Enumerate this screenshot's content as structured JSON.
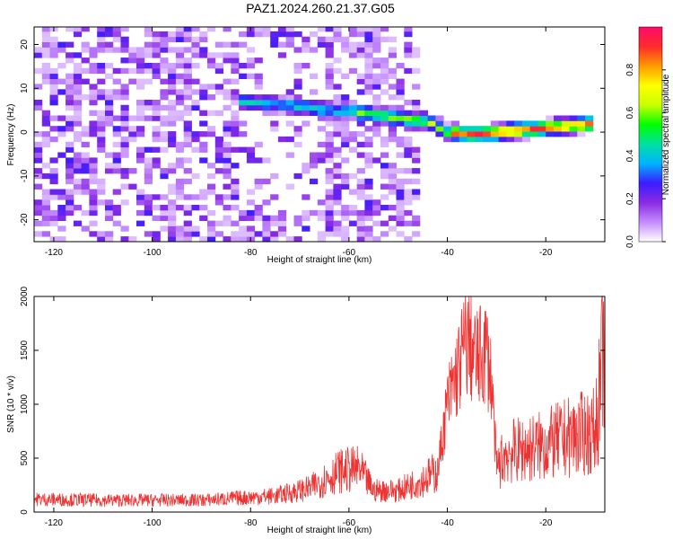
{
  "title": "PAZ1.2024.260.21.37.G05",
  "chart_data": [
    {
      "type": "heatmap",
      "xlabel": "Height of straight line (km)",
      "ylabel": "Frequency (Hz)",
      "xlim": [
        -124,
        -8
      ],
      "ylim": [
        -25,
        24
      ],
      "xticks": [
        -120,
        -100,
        -80,
        -60,
        -40,
        -20
      ],
      "yticks": [
        -20,
        -10,
        0,
        10,
        20
      ],
      "colorbar": {
        "label": "Normalized spectral amplitude",
        "range": [
          0,
          1
        ],
        "ticks": [
          "0.0",
          "0.2",
          "0.4",
          "0.6",
          "0.8"
        ],
        "colors": [
          "#ffffff",
          "#c48cff",
          "#8a2be2",
          "#3a1cff",
          "#00b4ff",
          "#00e0a0",
          "#00ff00",
          "#c8ff00",
          "#ffff00",
          "#ff9a00",
          "#ff2a2a",
          "#ff0a6e"
        ]
      },
      "ridge": [
        [
          -82,
          7
        ],
        [
          -76,
          6.5
        ],
        [
          -70,
          6
        ],
        [
          -65,
          5
        ],
        [
          -60,
          5
        ],
        [
          -55,
          4
        ],
        [
          -48,
          3
        ],
        [
          -44,
          2.5
        ],
        [
          -40,
          0
        ],
        [
          -35,
          -0.5
        ],
        [
          -30,
          0
        ],
        [
          -25,
          0.5
        ],
        [
          -20,
          1
        ],
        [
          -15,
          1.5
        ],
        [
          -10,
          2
        ]
      ],
      "noise_region_x": [
        -124,
        -50
      ]
    },
    {
      "type": "line",
      "xlabel": "Height of straight line (km)",
      "ylabel": "SNR (10 * v/v)",
      "xlim": [
        -124,
        -8
      ],
      "ylim": [
        0,
        2000
      ],
      "xticks": [
        -120,
        -100,
        -80,
        -60,
        -40,
        -20
      ],
      "yticks": [
        0,
        500,
        1000,
        1500,
        2000
      ],
      "color": "#ee3333",
      "envelope": [
        [
          -124,
          120
        ],
        [
          -110,
          110
        ],
        [
          -90,
          110
        ],
        [
          -75,
          150
        ],
        [
          -68,
          220
        ],
        [
          -62,
          380
        ],
        [
          -58,
          400
        ],
        [
          -55,
          200
        ],
        [
          -50,
          200
        ],
        [
          -45,
          300
        ],
        [
          -42,
          380
        ],
        [
          -40,
          1000
        ],
        [
          -38,
          1300
        ],
        [
          -36,
          1600
        ],
        [
          -34,
          1400
        ],
        [
          -32,
          1500
        ],
        [
          -31,
          1200
        ],
        [
          -30,
          400
        ],
        [
          -28,
          550
        ],
        [
          -20,
          620
        ],
        [
          -15,
          700
        ],
        [
          -10,
          750
        ],
        [
          -9,
          1100
        ],
        [
          -8,
          1700
        ]
      ]
    }
  ]
}
